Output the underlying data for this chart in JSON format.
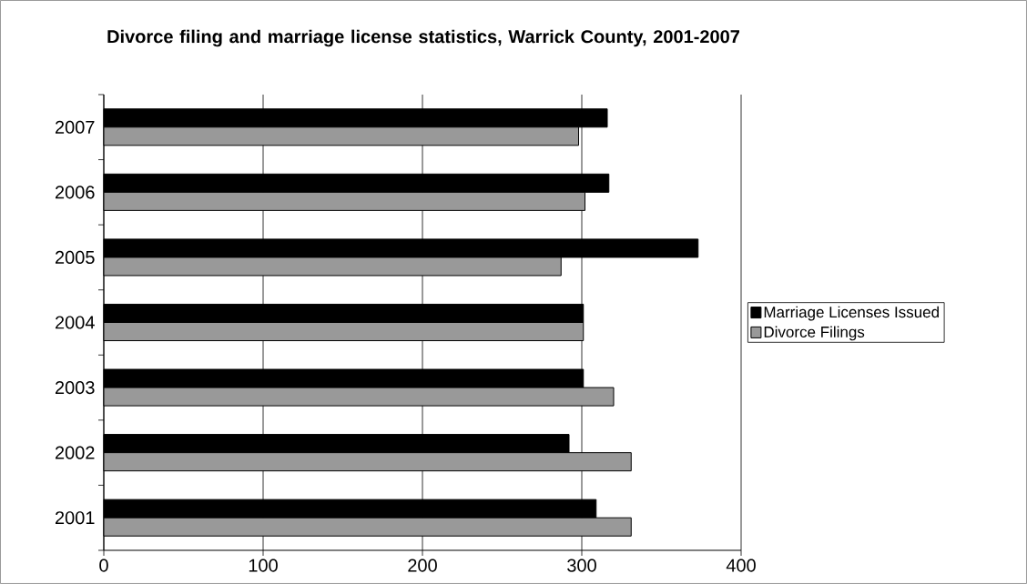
{
  "chart_data": {
    "type": "bar",
    "orientation": "horizontal",
    "title": "Divorce filing and marriage license statistics, Warrick County, 2001-2007",
    "categories": [
      "2007",
      "2006",
      "2005",
      "2004",
      "2003",
      "2002",
      "2001"
    ],
    "series": [
      {
        "name": "Marriage Licenses Issued",
        "color": "#000000",
        "values": [
          316,
          317,
          373,
          301,
          301,
          292,
          309
        ]
      },
      {
        "name": "Divorce Filings",
        "color": "#999999",
        "values": [
          298,
          302,
          287,
          301,
          320,
          331,
          331
        ]
      }
    ],
    "xlim": [
      0,
      400
    ],
    "xticks": [
      0,
      100,
      200,
      300,
      400
    ],
    "grid": "x",
    "legend": "right"
  }
}
